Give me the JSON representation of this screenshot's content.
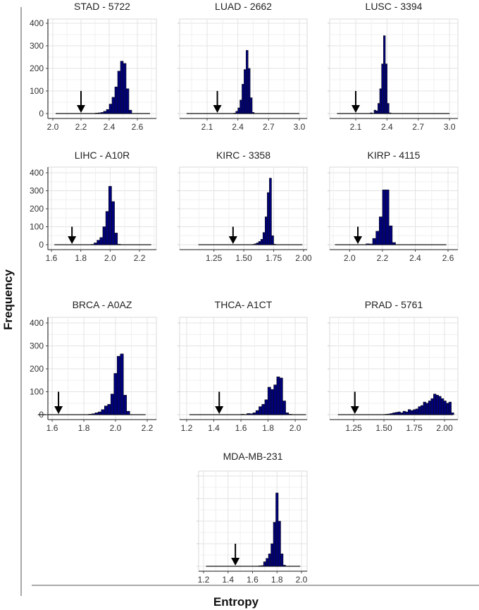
{
  "chart_data": {
    "type": "bar",
    "subtype": "faceted-histogram",
    "xlabel": "Entropy",
    "ylabel": "Frequency",
    "ylim": [
      0,
      400
    ],
    "yticks": [
      0,
      100,
      200,
      300,
      400
    ],
    "grid": true,
    "bar_color": "#00007a",
    "bar_edge": "#111111",
    "panels": [
      {
        "title": "STAD - 5722",
        "xlim": [
          1.965,
          2.735
        ],
        "xticks": [
          "2.0",
          "2.2",
          "2.4",
          "2.6"
        ],
        "baseline": [
          2.02,
          2.69
        ],
        "arrow": 2.2,
        "bin_start": 2.3,
        "bin_width": 0.02,
        "counts": [
          2,
          3,
          5,
          10,
          18,
          42,
          72,
          118,
          188,
          232,
          222,
          110,
          15
        ]
      },
      {
        "title": "LUAD - 2662",
        "xlim": [
          1.832,
          3.076
        ],
        "xticks": [
          "2.1",
          "2.4",
          "2.7",
          "3.0"
        ],
        "baseline": [
          1.9,
          3.0
        ],
        "arrow": 2.2,
        "bin_start": 2.36,
        "bin_width": 0.02,
        "counts": [
          2,
          10,
          25,
          60,
          130,
          195,
          280,
          200,
          70,
          5
        ]
      },
      {
        "title": "LUSC - 3394",
        "xlim": [
          1.85,
          3.08
        ],
        "xticks": [
          "2.1",
          "2.4",
          "2.7",
          "3.0"
        ],
        "baseline": [
          1.92,
          3.0
        ],
        "arrow": 2.1,
        "bin_start": 2.24,
        "bin_width": 0.018,
        "counts": [
          3,
          0,
          15,
          12,
          45,
          110,
          220,
          345,
          220,
          45,
          3
        ]
      },
      {
        "title": "LIHC - A10R",
        "xlim": [
          1.576,
          2.315
        ],
        "xticks": [
          "1.6",
          "1.8",
          "2.0",
          "2.2"
        ],
        "baseline": [
          1.62,
          2.28
        ],
        "arrow": 1.74,
        "bin_start": 1.87,
        "bin_width": 0.02,
        "counts": [
          2,
          10,
          25,
          40,
          100,
          185,
          325,
          240,
          65,
          3
        ]
      },
      {
        "title": "KIRC - 3358",
        "xlim": [
          0.963,
          2.03
        ],
        "xticks": [
          "1.25",
          "1.50",
          "1.75",
          "2.00"
        ],
        "baseline": [
          1.12,
          1.99
        ],
        "arrow": 1.41,
        "bin_start": 1.57,
        "bin_width": 0.018,
        "counts": [
          2,
          5,
          10,
          18,
          30,
          68,
          155,
          290,
          370,
          50,
          3
        ]
      },
      {
        "title": "KIRP - 4115",
        "xlim": [
          1.878,
          2.66
        ],
        "xticks": [
          "2.0",
          "2.2",
          "2.4",
          "2.6"
        ],
        "baseline": [
          1.91,
          2.59
        ],
        "arrow": 2.05,
        "bin_start": 2.1,
        "bin_width": 0.02,
        "counts": [
          5,
          4,
          35,
          75,
          155,
          305,
          305,
          105,
          12
        ]
      },
      {
        "title": "BRCA - A0AZ",
        "xlim": [
          1.573,
          2.258
        ],
        "xticks": [
          "1.6",
          "1.8",
          "2.0",
          "2.2"
        ],
        "baseline": [
          1.51,
          2.19
        ],
        "arrow": 1.64,
        "bin_start": 1.83,
        "bin_width": 0.02,
        "counts": [
          2,
          4,
          8,
          12,
          22,
          38,
          45,
          90,
          180,
          255,
          265,
          85,
          15
        ]
      },
      {
        "title": "THCA- A1CT",
        "xlim": [
          1.148,
          2.088
        ],
        "xticks": [
          "1.2",
          "1.4",
          "1.6",
          "1.8",
          "2.0"
        ],
        "baseline": [
          1.22,
          2.08
        ],
        "arrow": 1.44,
        "bin_start": 1.6,
        "bin_width": 0.022,
        "counts": [
          2,
          1,
          5,
          4,
          8,
          18,
          35,
          45,
          65,
          120,
          110,
          130,
          165,
          160,
          60,
          8,
          2
        ]
      },
      {
        "title": "PRAD - 5761",
        "xlim": [
          1.052,
          2.11
        ],
        "xticks": [
          "1.25",
          "1.50",
          "1.75",
          "2.00"
        ],
        "baseline": [
          1.12,
          2.07
        ],
        "arrow": 1.26,
        "bin_start": 1.51,
        "bin_width": 0.021,
        "counts": [
          2,
          3,
          5,
          8,
          10,
          12,
          8,
          15,
          12,
          22,
          18,
          22,
          25,
          35,
          40,
          55,
          50,
          60,
          70,
          90,
          85,
          80,
          70,
          60,
          50,
          55,
          8
        ]
      },
      {
        "title": "MDA-MB-231",
        "xlim": [
          1.16,
          2.046
        ],
        "xticks": [
          "1.2",
          "1.4",
          "1.6",
          "1.8",
          "2.0"
        ],
        "baseline": [
          1.22,
          1.99
        ],
        "arrow": 1.46,
        "bin_start": 1.65,
        "bin_width": 0.02,
        "counts": [
          2,
          3,
          20,
          35,
          55,
          100,
          195,
          325,
          200,
          55,
          5
        ]
      }
    ]
  }
}
